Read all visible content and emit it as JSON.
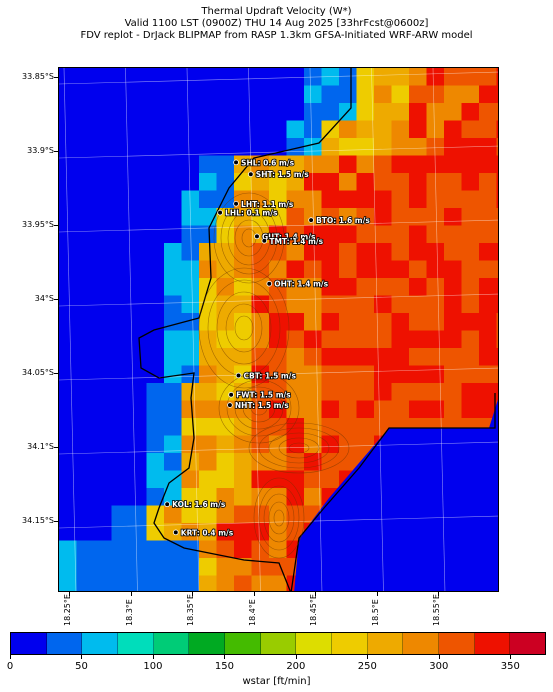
{
  "header": {
    "line1": "Thermal Updraft Velocity (W*)",
    "line2": "Valid 1100 LST (0900Z) THU 14 Aug 2025 [33hrFcst@0600z]",
    "line3": "FDV replot - DrJack BLIPMAP from RASP 1.3km GFSA-Initiated WRF-ARW model"
  },
  "axes": {
    "lat_labels": [
      "33.85°S",
      "33.9°S",
      "33.95°S",
      "34°S",
      "34.05°S",
      "34.1°S",
      "34.15°S"
    ],
    "lon_labels": [
      "18.25°E",
      "18.3°E",
      "18.35°E",
      "18.4°E",
      "18.45°E",
      "18.5°E",
      "18.55°E"
    ]
  },
  "stations": [
    {
      "id": "SHL",
      "text": "SHL: 0.6 m/s",
      "lon": 18.385,
      "lat": -33.907
    },
    {
      "id": "SHT",
      "text": "SHT: 1.5 m/s",
      "lon": 18.397,
      "lat": -33.915
    },
    {
      "id": "LHT",
      "text": "LHT: 1.1 m/s",
      "lon": 18.385,
      "lat": -33.935
    },
    {
      "id": "LHL",
      "text": "LHL: 0.1 m/s",
      "lon": 18.372,
      "lat": -33.941
    },
    {
      "id": "BTO",
      "text": "BTO: 1.6 m/s",
      "lon": 18.446,
      "lat": -33.946
    },
    {
      "id": "GUT",
      "text": "GUT: 1.4 m/s",
      "lon": 18.402,
      "lat": -33.957
    },
    {
      "id": "TMT",
      "text": "TMT: 1.4 m/s",
      "lon": 18.408,
      "lat": -33.96
    },
    {
      "id": "OHT",
      "text": "OHT: 1.4 m/s",
      "lon": 18.412,
      "lat": -33.989
    },
    {
      "id": "CBT",
      "text": "CBT: 1.5 m/s",
      "lon": 18.387,
      "lat": -34.051
    },
    {
      "id": "FWT",
      "text": "FWT: 1.5 m/s",
      "lon": 18.381,
      "lat": -34.064
    },
    {
      "id": "NHT",
      "text": "NHT: 1.5 m/s",
      "lon": 18.38,
      "lat": -34.071
    },
    {
      "id": "KOL",
      "text": "KOL: 1.6 m/s",
      "lon": 18.329,
      "lat": -34.138
    },
    {
      "id": "KRT",
      "text": "KRT: 0.4 m/s",
      "lon": 18.336,
      "lat": -34.157
    }
  ],
  "colorbar": {
    "label": "wstar [ft/min]",
    "tick_labels": [
      "0",
      "50",
      "100",
      "150",
      "200",
      "250",
      "300",
      "350"
    ],
    "tick_values": [
      0,
      50,
      100,
      150,
      200,
      250,
      300,
      350
    ],
    "range": [
      0,
      375
    ],
    "colors": [
      "#0000ee",
      "#0066ee",
      "#00bbee",
      "#00ddbb",
      "#00cc77",
      "#00aa22",
      "#44bb00",
      "#99cc00",
      "#dddd00",
      "#eecc00",
      "#eeaa00",
      "#ee8800",
      "#ee5500",
      "#ee1100",
      "#cc0022"
    ]
  }
}
